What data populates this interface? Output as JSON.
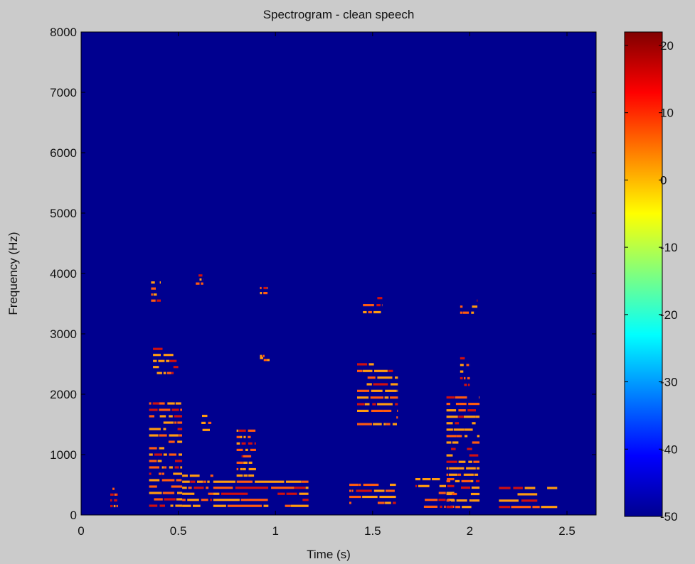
{
  "chart_data": {
    "type": "heatmap",
    "title": "Spectrogram - clean speech",
    "xlabel": "Time (s)",
    "ylabel": "Frequency (Hz)",
    "xlim": [
      0,
      2.65
    ],
    "ylim": [
      0,
      8000
    ],
    "x_ticks": [
      0,
      0.5,
      1,
      1.5,
      2,
      2.5
    ],
    "x_tick_labels": [
      "0",
      "0.5",
      "1",
      "1.5",
      "2",
      "2.5"
    ],
    "y_ticks": [
      0,
      1000,
      2000,
      3000,
      4000,
      5000,
      6000,
      7000,
      8000
    ],
    "y_tick_labels": [
      "0",
      "1000",
      "2000",
      "3000",
      "4000",
      "5000",
      "6000",
      "7000",
      "8000"
    ],
    "colormap": "jet",
    "colorbar": {
      "range": [
        -50,
        22
      ],
      "ticks": [
        20,
        10,
        0,
        -10,
        -20,
        -30,
        -40,
        -50
      ],
      "tick_labels": [
        "20",
        "10",
        "0",
        "-10",
        "-20",
        "-30",
        "-40",
        "-50"
      ]
    },
    "background_level_db": -50,
    "colors": {
      "figure_background": "#cbcbcb",
      "plot_background": "#00008f",
      "speech_bright": "#ff9a10",
      "speech_dark": "#d01010"
    },
    "speech_segments": [
      {
        "t_start": 0.15,
        "t_end": 0.19,
        "f_start": 100,
        "f_end": 480,
        "level_db": 5
      },
      {
        "t_start": 0.35,
        "t_end": 0.52,
        "f_start": 100,
        "f_end": 1900,
        "level_db": 12
      },
      {
        "t_start": 0.36,
        "t_end": 0.41,
        "f_start": 3500,
        "f_end": 3900,
        "level_db": 5
      },
      {
        "t_start": 0.37,
        "t_end": 0.5,
        "f_start": 2300,
        "f_end": 2800,
        "level_db": 4
      },
      {
        "t_start": 0.58,
        "t_end": 0.67,
        "f_start": 1350,
        "f_end": 1700,
        "level_db": 5
      },
      {
        "t_start": 0.59,
        "t_end": 0.63,
        "f_start": 3800,
        "f_end": 4000,
        "level_db": 3
      },
      {
        "t_start": 0.52,
        "t_end": 0.68,
        "f_start": 100,
        "f_end": 700,
        "level_db": 12
      },
      {
        "t_start": 0.68,
        "t_end": 1.17,
        "f_start": 100,
        "f_end": 600,
        "level_db": 14
      },
      {
        "t_start": 0.8,
        "t_end": 0.9,
        "f_start": 600,
        "f_end": 1450,
        "level_db": 5
      },
      {
        "t_start": 0.92,
        "t_end": 0.96,
        "f_start": 3550,
        "f_end": 3800,
        "level_db": 3
      },
      {
        "t_start": 0.92,
        "t_end": 0.97,
        "f_start": 2550,
        "f_end": 2650,
        "level_db": 3
      },
      {
        "t_start": 1.38,
        "t_end": 1.62,
        "f_start": 150,
        "f_end": 550,
        "level_db": 14
      },
      {
        "t_start": 1.42,
        "t_end": 1.63,
        "f_start": 1450,
        "f_end": 2550,
        "level_db": 6
      },
      {
        "t_start": 1.45,
        "t_end": 1.55,
        "f_start": 3300,
        "f_end": 3650,
        "level_db": 4
      },
      {
        "t_start": 1.72,
        "t_end": 1.92,
        "f_start": 80,
        "f_end": 650,
        "level_db": 12
      },
      {
        "t_start": 1.88,
        "t_end": 2.05,
        "f_start": 80,
        "f_end": 2000,
        "level_db": 12
      },
      {
        "t_start": 1.95,
        "t_end": 2.0,
        "f_start": 2100,
        "f_end": 2650,
        "level_db": 5
      },
      {
        "t_start": 1.95,
        "t_end": 2.04,
        "f_start": 3300,
        "f_end": 3600,
        "level_db": 3
      },
      {
        "t_start": 2.15,
        "t_end": 2.45,
        "f_start": 80,
        "f_end": 500,
        "level_db": 12
      }
    ]
  }
}
